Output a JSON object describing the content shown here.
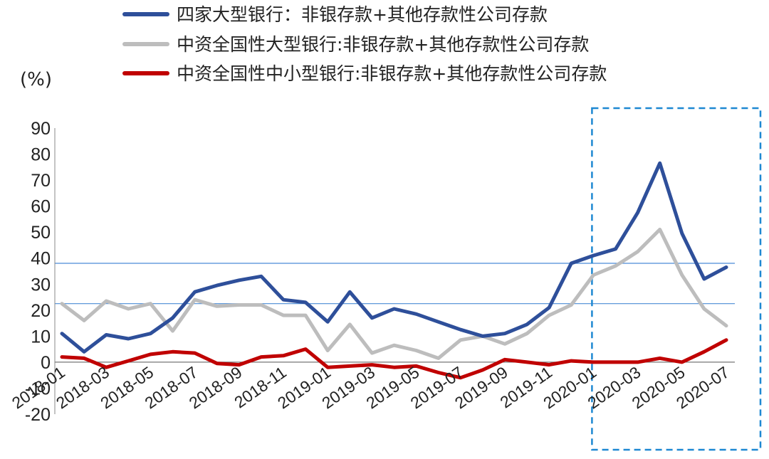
{
  "chart_data": {
    "type": "line",
    "unit_label": "(%)",
    "ylim": [
      -20,
      90
    ],
    "yticks": [
      -20,
      -10,
      0,
      10,
      20,
      30,
      40,
      50,
      60,
      70,
      80,
      90
    ],
    "x": [
      "2018-01",
      "2018-02",
      "2018-03",
      "2018-04",
      "2018-05",
      "2018-06",
      "2018-07",
      "2018-08",
      "2018-09",
      "2018-10",
      "2018-11",
      "2018-12",
      "2019-01",
      "2019-02",
      "2019-03",
      "2019-04",
      "2019-05",
      "2019-06",
      "2019-07",
      "2019-08",
      "2019-09",
      "2019-10",
      "2019-11",
      "2019-12",
      "2020-01",
      "2020-02",
      "2020-03",
      "2020-04",
      "2020-05",
      "2020-06",
      "2020-07"
    ],
    "xtick_labels": [
      "2018-01",
      "2018-03",
      "2018-05",
      "2018-07",
      "2018-09",
      "2018-11",
      "2019-01",
      "2019-03",
      "2019-05",
      "2019-07",
      "2019-09",
      "2019-11",
      "2020-01",
      "2020-03",
      "2020-05",
      "2020-07"
    ],
    "legend_position": "top",
    "series": [
      {
        "name": "四家大型银行：非银存款+其他存款性公司存款",
        "color": "#2E4F9A",
        "values": [
          11,
          4,
          10.5,
          9,
          11,
          17,
          27,
          29.5,
          31.5,
          33,
          24,
          23,
          15.5,
          27,
          17,
          20.5,
          18.5,
          15.5,
          12.5,
          10,
          11,
          14.5,
          21,
          38,
          41,
          43.5,
          57.5,
          76.5,
          49.5,
          32,
          36.5
        ]
      },
      {
        "name": "中资全国性大型银行:非银存款+其他存款性公司存款",
        "color": "#BDBDBD",
        "values": [
          22.5,
          16,
          23.5,
          20.5,
          22.5,
          12,
          24,
          21.5,
          22,
          22,
          18,
          18,
          4.5,
          14.5,
          3.5,
          6.5,
          4.5,
          1.5,
          8.5,
          10,
          7,
          11,
          18,
          22,
          33.5,
          37,
          42.5,
          51,
          33.5,
          20.5,
          14
        ]
      },
      {
        "name": "中资全国性中小型银行:非银存款+其他存款性公司存款",
        "color": "#C00000",
        "values": [
          2,
          1.5,
          -2,
          0.5,
          3,
          4,
          3.5,
          -0.5,
          -1,
          2,
          2.5,
          5,
          -2,
          -1.5,
          -1,
          -2,
          -1.5,
          -4,
          -6,
          -3,
          1,
          0,
          -1,
          0.5,
          0,
          0,
          0,
          1.5,
          0,
          4,
          8.5
        ]
      }
    ],
    "reference_lines": [
      38,
      22.5
    ],
    "highlight_range": [
      "2020-01",
      "2020-07"
    ]
  }
}
